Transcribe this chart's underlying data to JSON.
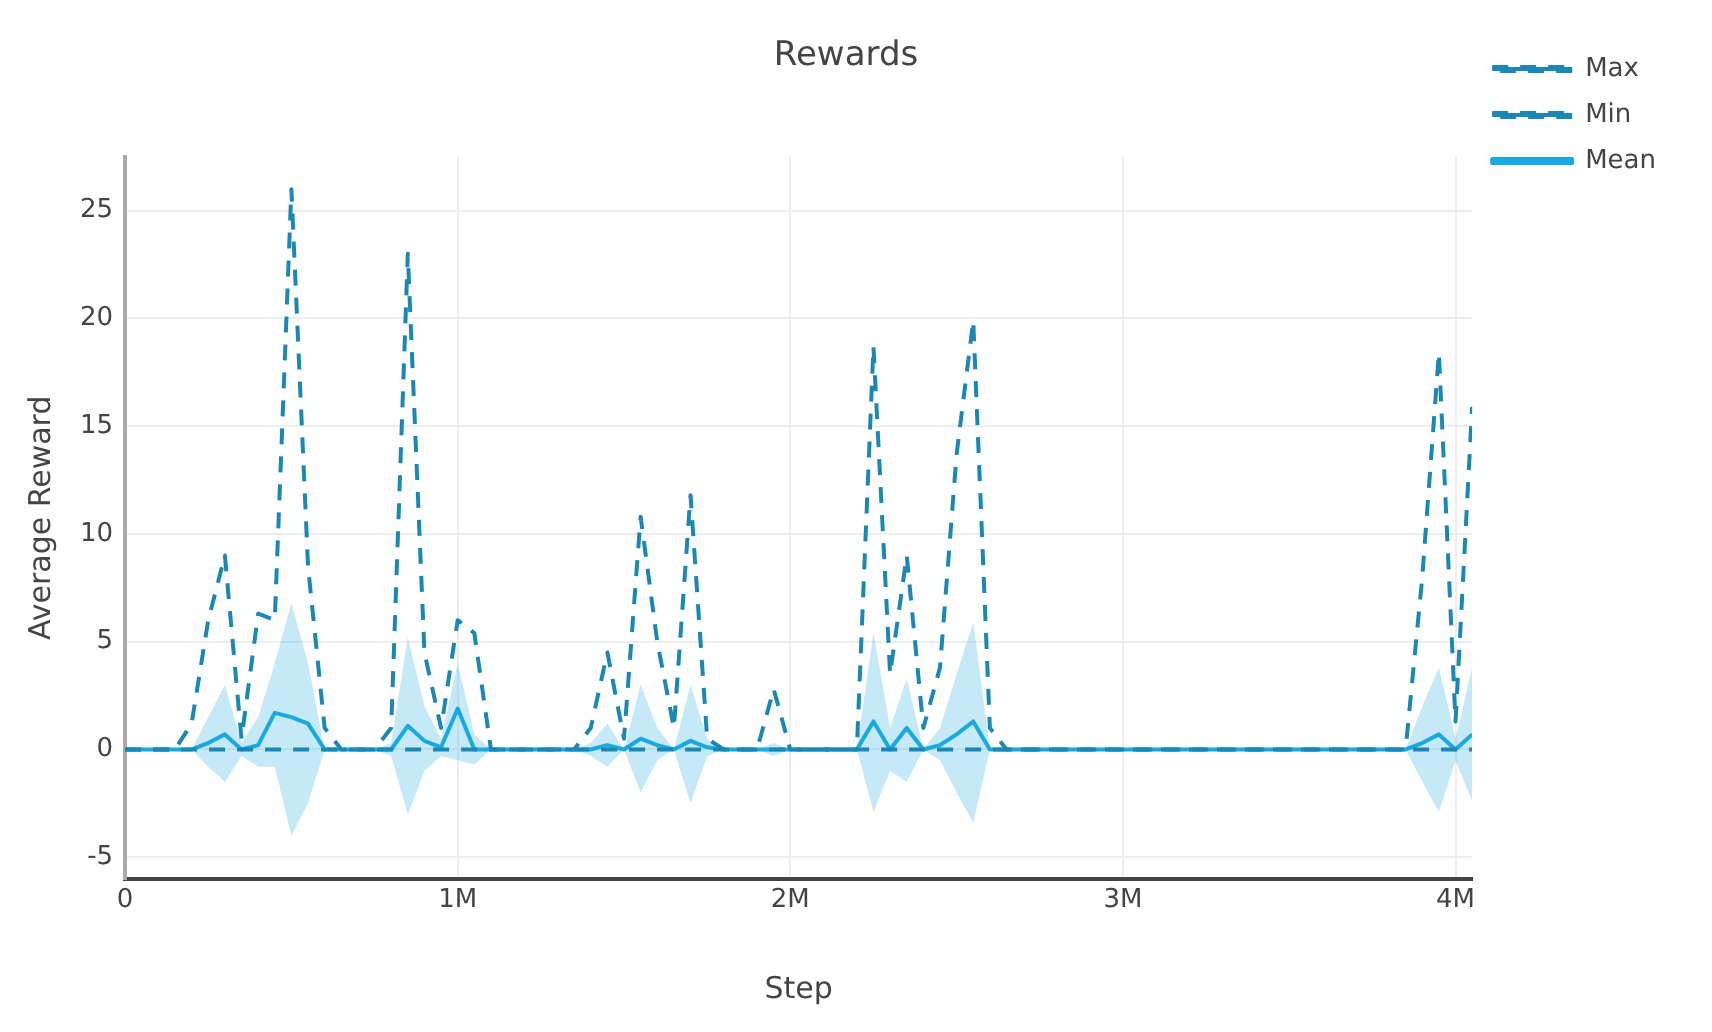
{
  "chart_data": {
    "type": "line",
    "title": "Rewards",
    "xlabel": "Step",
    "ylabel": "Average Reward",
    "x": [
      0,
      150000,
      200000,
      250000,
      300000,
      350000,
      400000,
      450000,
      500000,
      550000,
      600000,
      650000,
      750000,
      800000,
      850000,
      900000,
      950000,
      1000000,
      1050000,
      1100000,
      1350000,
      1400000,
      1450000,
      1500000,
      1550000,
      1600000,
      1650000,
      1700000,
      1750000,
      1800000,
      1900000,
      1950000,
      2000000,
      2200000,
      2250000,
      2300000,
      2350000,
      2400000,
      2450000,
      2500000,
      2550000,
      2600000,
      2650000,
      3850000,
      3900000,
      3950000,
      4000000,
      4050000
    ],
    "series": [
      {
        "name": "Max",
        "color": "#1a87b5",
        "line_style": "dashed",
        "values": [
          0,
          0,
          1.2,
          6,
          9,
          0.5,
          6.3,
          6,
          26,
          8.5,
          1,
          0,
          0,
          1,
          23,
          4.5,
          1,
          6,
          5.4,
          0,
          0,
          1,
          4.5,
          0.5,
          10.8,
          5,
          1,
          11.8,
          0.5,
          0,
          0,
          2.8,
          0,
          0,
          18.7,
          3.5,
          9,
          1,
          3.8,
          13.7,
          19.9,
          1,
          0,
          0,
          8,
          18.4,
          1.3,
          15.9
        ]
      },
      {
        "name": "Min",
        "color": "#1a87b5",
        "line_style": "dashed",
        "values": [
          0,
          0,
          0,
          0,
          0,
          0,
          0,
          0,
          0,
          0,
          0,
          0,
          0,
          0,
          0,
          0,
          0,
          0,
          0,
          0,
          0,
          0,
          0,
          0,
          0,
          0,
          0,
          0,
          0,
          0,
          0,
          0,
          0,
          0,
          0,
          0,
          0,
          0,
          0,
          0,
          0,
          0,
          0,
          0,
          0,
          0,
          0,
          0
        ]
      },
      {
        "name": "Mean",
        "color": "#17a9e1",
        "line_style": "solid",
        "values": [
          0,
          0,
          0,
          0.3,
          0.7,
          0,
          0.2,
          1.7,
          1.5,
          1.2,
          0,
          0,
          0,
          0,
          1.1,
          0.4,
          0.1,
          1.9,
          0,
          0,
          0,
          0,
          0.2,
          0,
          0.5,
          0.2,
          0,
          0.4,
          0.1,
          0,
          0,
          0,
          0,
          0,
          1.3,
          0,
          1,
          0,
          0.2,
          0.7,
          1.3,
          0,
          0,
          0,
          0.3,
          0.7,
          0,
          0.7
        ],
        "lower": [
          0,
          0,
          0,
          -0.8,
          -1.5,
          -0.3,
          -0.8,
          -0.8,
          -4,
          -2.5,
          0,
          0,
          0,
          -0.3,
          -3,
          -1,
          -0.3,
          -0.5,
          -0.7,
          0,
          0,
          -0.3,
          -0.8,
          0,
          -2,
          -0.5,
          0,
          -2.5,
          -0.3,
          0,
          0,
          -0.3,
          0,
          0,
          -2.9,
          -1,
          -1.5,
          0,
          -0.5,
          -2,
          -3.4,
          0,
          0,
          0,
          -1.5,
          -2.9,
          -0.5,
          -2.4
        ],
        "upper": [
          0,
          0,
          0,
          1.5,
          3,
          0.3,
          1.5,
          4,
          6.8,
          4,
          0,
          0,
          0,
          0.3,
          5.2,
          2,
          0.5,
          4,
          0.7,
          0,
          0,
          0.3,
          1.2,
          0,
          3,
          1,
          0,
          3,
          0.5,
          0,
          0,
          0.3,
          0,
          0,
          5.4,
          1,
          3.3,
          0,
          1,
          3.5,
          5.9,
          0,
          0,
          0,
          2,
          3.8,
          0.5,
          3.8
        ]
      }
    ],
    "xlim": [
      0,
      4050000
    ],
    "xticks": [
      0,
      {
        "value": 1000000,
        "label": "1M"
      },
      {
        "value": 2000000,
        "label": "2M"
      },
      {
        "value": 3000000,
        "label": "3M"
      },
      {
        "value": 4000000,
        "label": "4M"
      }
    ],
    "ylim": [
      -6,
      27.5
    ],
    "yticks": [
      -5,
      0,
      5,
      10,
      15,
      20,
      25
    ],
    "grid": true,
    "legend": "top right",
    "marker": "none"
  }
}
